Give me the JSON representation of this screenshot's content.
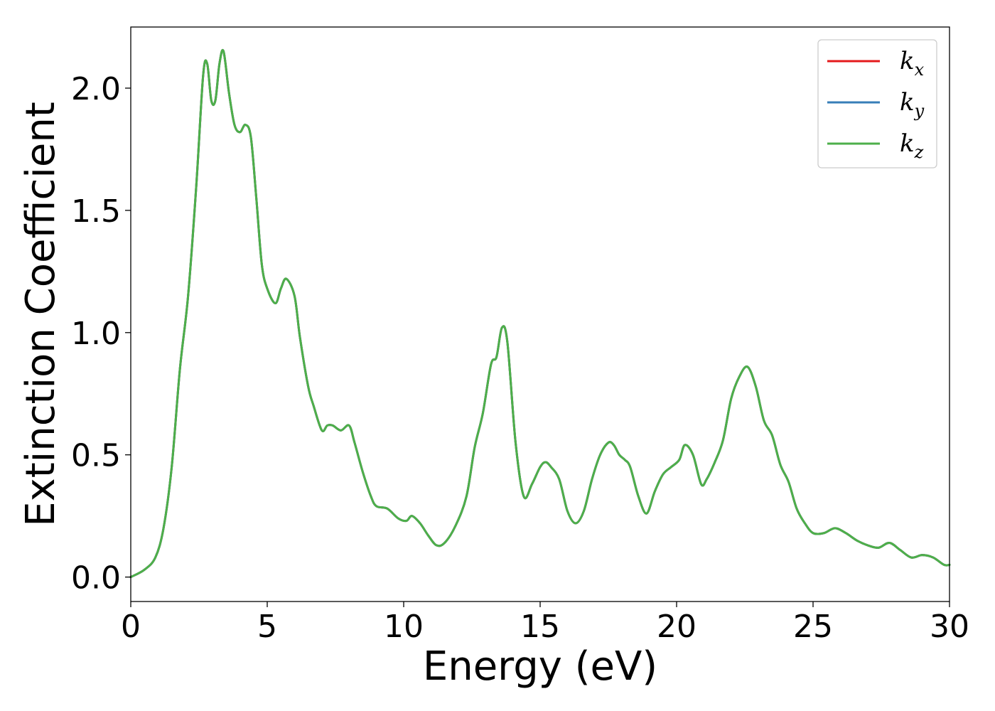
{
  "chart_data": {
    "type": "line",
    "title": "",
    "xlabel": "Energy (eV)",
    "ylabel": "Extinction Coefficient",
    "xlim": [
      0,
      30
    ],
    "ylim": [
      -0.1,
      2.25
    ],
    "xticks": [
      0,
      5,
      10,
      15,
      20,
      25,
      30
    ],
    "yticks": [
      0.0,
      0.5,
      1.0,
      1.5,
      2.0
    ],
    "xtick_labels": [
      "0",
      "5",
      "10",
      "15",
      "20",
      "25",
      "30"
    ],
    "ytick_labels": [
      "0.0",
      "0.5",
      "1.0",
      "1.5",
      "2.0"
    ],
    "grid": false,
    "legend_position": "top-right",
    "x": [
      0,
      0.5,
      0.9,
      1.2,
      1.5,
      1.8,
      2.1,
      2.4,
      2.65,
      2.8,
      2.95,
      3.1,
      3.25,
      3.4,
      3.6,
      3.8,
      4.0,
      4.2,
      4.4,
      4.6,
      4.8,
      5.0,
      5.3,
      5.5,
      5.7,
      6.0,
      6.2,
      6.5,
      6.7,
      7.0,
      7.2,
      7.4,
      7.7,
      8.0,
      8.2,
      8.5,
      8.8,
      9.0,
      9.4,
      9.8,
      10.1,
      10.3,
      10.6,
      10.9,
      11.2,
      11.5,
      11.9,
      12.3,
      12.6,
      12.9,
      13.2,
      13.4,
      13.6,
      13.8,
      14.1,
      14.4,
      14.7,
      15.0,
      15.2,
      15.4,
      15.7,
      16.0,
      16.3,
      16.6,
      16.9,
      17.2,
      17.5,
      17.7,
      17.9,
      18.1,
      18.3,
      18.6,
      18.9,
      19.2,
      19.5,
      19.8,
      20.1,
      20.3,
      20.6,
      20.9,
      21.1,
      21.4,
      21.7,
      22.0,
      22.3,
      22.6,
      22.9,
      23.2,
      23.5,
      23.8,
      24.1,
      24.4,
      24.7,
      25.0,
      25.4,
      25.8,
      26.2,
      26.6,
      27.0,
      27.4,
      27.8,
      28.2,
      28.6,
      29.0,
      29.4,
      29.8,
      30.0
    ],
    "series": [
      {
        "name": "k_x",
        "color": "#e41a1c",
        "values": [
          0.0,
          0.03,
          0.08,
          0.2,
          0.45,
          0.85,
          1.15,
          1.6,
          2.05,
          2.1,
          1.95,
          1.95,
          2.1,
          2.15,
          1.98,
          1.85,
          1.82,
          1.85,
          1.8,
          1.55,
          1.28,
          1.18,
          1.12,
          1.18,
          1.22,
          1.15,
          0.98,
          0.78,
          0.7,
          0.6,
          0.62,
          0.62,
          0.6,
          0.62,
          0.55,
          0.43,
          0.33,
          0.29,
          0.28,
          0.24,
          0.23,
          0.25,
          0.22,
          0.17,
          0.13,
          0.14,
          0.21,
          0.33,
          0.53,
          0.67,
          0.87,
          0.9,
          1.02,
          0.96,
          0.55,
          0.33,
          0.38,
          0.45,
          0.47,
          0.45,
          0.4,
          0.27,
          0.22,
          0.27,
          0.4,
          0.5,
          0.55,
          0.54,
          0.5,
          0.48,
          0.45,
          0.33,
          0.26,
          0.35,
          0.42,
          0.45,
          0.48,
          0.54,
          0.5,
          0.38,
          0.4,
          0.47,
          0.56,
          0.73,
          0.82,
          0.86,
          0.78,
          0.64,
          0.58,
          0.46,
          0.39,
          0.28,
          0.22,
          0.18,
          0.18,
          0.2,
          0.18,
          0.15,
          0.13,
          0.12,
          0.14,
          0.11,
          0.08,
          0.09,
          0.08,
          0.05,
          0.05
        ]
      },
      {
        "name": "k_y",
        "color": "#377eb8",
        "values": [
          0.0,
          0.03,
          0.08,
          0.2,
          0.45,
          0.85,
          1.15,
          1.6,
          2.05,
          2.1,
          1.95,
          1.95,
          2.1,
          2.15,
          1.98,
          1.85,
          1.82,
          1.85,
          1.8,
          1.55,
          1.28,
          1.18,
          1.12,
          1.18,
          1.22,
          1.15,
          0.98,
          0.78,
          0.7,
          0.6,
          0.62,
          0.62,
          0.6,
          0.62,
          0.55,
          0.43,
          0.33,
          0.29,
          0.28,
          0.24,
          0.23,
          0.25,
          0.22,
          0.17,
          0.13,
          0.14,
          0.21,
          0.33,
          0.53,
          0.67,
          0.87,
          0.9,
          1.02,
          0.96,
          0.55,
          0.33,
          0.38,
          0.45,
          0.47,
          0.45,
          0.4,
          0.27,
          0.22,
          0.27,
          0.4,
          0.5,
          0.55,
          0.54,
          0.5,
          0.48,
          0.45,
          0.33,
          0.26,
          0.35,
          0.42,
          0.45,
          0.48,
          0.54,
          0.5,
          0.38,
          0.4,
          0.47,
          0.56,
          0.73,
          0.82,
          0.86,
          0.78,
          0.64,
          0.58,
          0.46,
          0.39,
          0.28,
          0.22,
          0.18,
          0.18,
          0.2,
          0.18,
          0.15,
          0.13,
          0.12,
          0.14,
          0.11,
          0.08,
          0.09,
          0.08,
          0.05,
          0.05
        ]
      },
      {
        "name": "k_z",
        "color": "#4daf4a",
        "values": [
          0.0,
          0.03,
          0.08,
          0.2,
          0.45,
          0.85,
          1.15,
          1.6,
          2.05,
          2.1,
          1.95,
          1.95,
          2.1,
          2.15,
          1.98,
          1.85,
          1.82,
          1.85,
          1.8,
          1.55,
          1.28,
          1.18,
          1.12,
          1.18,
          1.22,
          1.15,
          0.98,
          0.78,
          0.7,
          0.6,
          0.62,
          0.62,
          0.6,
          0.62,
          0.55,
          0.43,
          0.33,
          0.29,
          0.28,
          0.24,
          0.23,
          0.25,
          0.22,
          0.17,
          0.13,
          0.14,
          0.21,
          0.33,
          0.53,
          0.67,
          0.87,
          0.9,
          1.02,
          0.96,
          0.55,
          0.33,
          0.38,
          0.45,
          0.47,
          0.45,
          0.4,
          0.27,
          0.22,
          0.27,
          0.4,
          0.5,
          0.55,
          0.54,
          0.5,
          0.48,
          0.45,
          0.33,
          0.26,
          0.35,
          0.42,
          0.45,
          0.48,
          0.54,
          0.5,
          0.38,
          0.4,
          0.47,
          0.56,
          0.73,
          0.82,
          0.86,
          0.78,
          0.64,
          0.58,
          0.46,
          0.39,
          0.28,
          0.22,
          0.18,
          0.18,
          0.2,
          0.18,
          0.15,
          0.13,
          0.12,
          0.14,
          0.11,
          0.08,
          0.09,
          0.08,
          0.05,
          0.05
        ]
      }
    ],
    "legend": [
      {
        "base": "k",
        "sub": "x",
        "color": "#e41a1c"
      },
      {
        "base": "k",
        "sub": "y",
        "color": "#377eb8"
      },
      {
        "base": "k",
        "sub": "z",
        "color": "#4daf4a"
      }
    ]
  }
}
